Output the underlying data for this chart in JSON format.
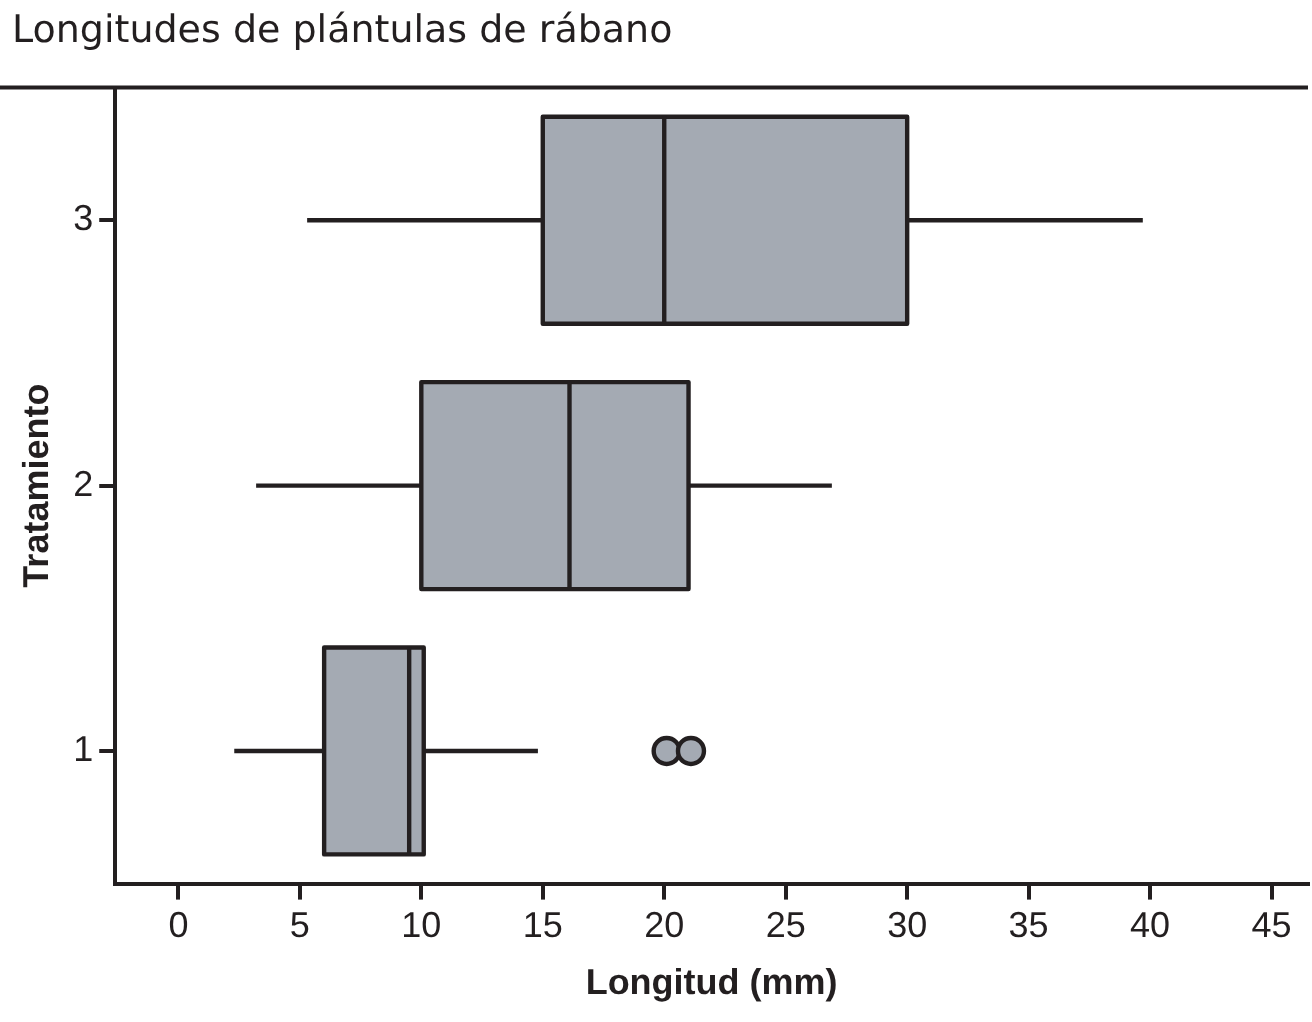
{
  "chart_data": {
    "type": "box",
    "orientation": "horizontal",
    "title": "Longitudes de plántulas de rábano",
    "xlabel": "Longitud (mm)",
    "ylabel": "Tratamiento",
    "categories": [
      "3",
      "2",
      "1"
    ],
    "color": "#a4aab3",
    "boxes": [
      {
        "low": 5.3,
        "q1": 15,
        "median": 20,
        "q3": 30,
        "high": 39.7
      },
      {
        "low": 3.2,
        "q1": 10,
        "median": 16.1,
        "q3": 21,
        "high": 26.9
      },
      {
        "low": 2.3,
        "q1": 6,
        "median": 9.5,
        "q3": 10.1,
        "high": 14.8,
        "outliers": [
          20.1,
          21.1
        ]
      }
    ],
    "xlim": [
      -2.6,
      46.5
    ],
    "xticks": [
      0,
      5,
      10,
      15,
      20,
      25,
      30,
      35,
      40,
      45
    ],
    "grid": false,
    "legend": false
  }
}
